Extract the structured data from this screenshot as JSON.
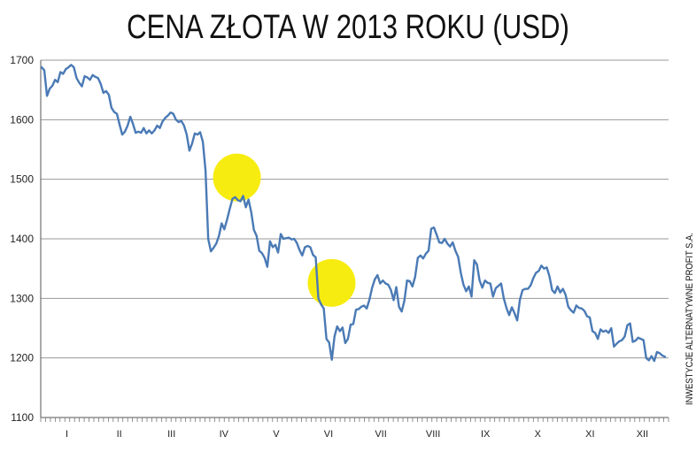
{
  "chart_data": {
    "type": "line",
    "title": "CENA ZŁOTA W 2013 ROKU (USD)",
    "xlabel": "",
    "ylabel": "",
    "ylim": [
      1100,
      1700
    ],
    "yticks": [
      1100,
      1200,
      1300,
      1400,
      1500,
      1600,
      1700
    ],
    "grid": "horizontal",
    "legend": "none",
    "months": [
      "I",
      "II",
      "III",
      "IV",
      "V",
      "VI",
      "VII",
      "VIII",
      "IX",
      "X",
      "XI",
      "XII"
    ],
    "line_color": "#4a7ab5",
    "highlight_color": "#f7ec0f",
    "highlights": [
      {
        "month_index": 3.75,
        "value": 1503
      },
      {
        "month_index": 5.56,
        "value": 1326
      }
    ],
    "series": [
      {
        "values": [
          1688,
          1683,
          1640,
          1652,
          1657,
          1667,
          1663,
          1680,
          1677,
          1685,
          1688,
          1692,
          1688,
          1670,
          1662,
          1656,
          1673,
          1671,
          1667,
          1675,
          1672,
          1670,
          1660,
          1645,
          1648,
          1642,
          1620,
          1613,
          1610,
          1592,
          1575,
          1580,
          1590,
          1605,
          1593,
          1578,
          1580,
          1578,
          1586,
          1577,
          1582,
          1577,
          1582,
          1590,
          1586,
          1597,
          1603,
          1607,
          1612,
          1610,
          1600,
          1596,
          1598,
          1590,
          1575,
          1548,
          1560,
          1577,
          1575,
          1579,
          1563,
          1515,
          1400,
          1379,
          1385,
          1392,
          1405,
          1426,
          1416,
          1432,
          1450,
          1467,
          1470,
          1465,
          1463,
          1472,
          1453,
          1466,
          1445,
          1415,
          1405,
          1380,
          1376,
          1368,
          1353,
          1396,
          1386,
          1390,
          1377,
          1408,
          1400,
          1401,
          1402,
          1399,
          1400,
          1393,
          1381,
          1372,
          1386,
          1388,
          1386,
          1373,
          1369,
          1300,
          1290,
          1283,
          1232,
          1226,
          1197,
          1236,
          1253,
          1245,
          1251,
          1225,
          1232,
          1256,
          1257,
          1281,
          1282,
          1286,
          1288,
          1283,
          1298,
          1318,
          1332,
          1339,
          1325,
          1330,
          1325,
          1323,
          1314,
          1297,
          1319,
          1286,
          1278,
          1296,
          1330,
          1329,
          1320,
          1336,
          1368,
          1372,
          1367,
          1375,
          1380,
          1417,
          1419,
          1407,
          1394,
          1393,
          1400,
          1392,
          1387,
          1394,
          1380,
          1370,
          1343,
          1323,
          1312,
          1320,
          1303,
          1364,
          1357,
          1330,
          1318,
          1330,
          1326,
          1325,
          1303,
          1317,
          1321,
          1325,
          1300,
          1284,
          1272,
          1285,
          1275,
          1263,
          1298,
          1314,
          1316,
          1316,
          1322,
          1334,
          1343,
          1346,
          1355,
          1350,
          1352,
          1337,
          1314,
          1309,
          1320,
          1310,
          1316,
          1306,
          1286,
          1280,
          1276,
          1288,
          1284,
          1283,
          1279,
          1270,
          1268,
          1245,
          1242,
          1232,
          1248,
          1244,
          1246,
          1242,
          1250,
          1219,
          1224,
          1228,
          1230,
          1236,
          1255,
          1258,
          1227,
          1229,
          1234,
          1232,
          1230,
          1200,
          1196,
          1203,
          1195,
          1210,
          1208,
          1204,
          1202
        ]
      }
    ]
  },
  "side_credit": "INWESTYCJE ALTERNATYWNE PROFIT S.A."
}
